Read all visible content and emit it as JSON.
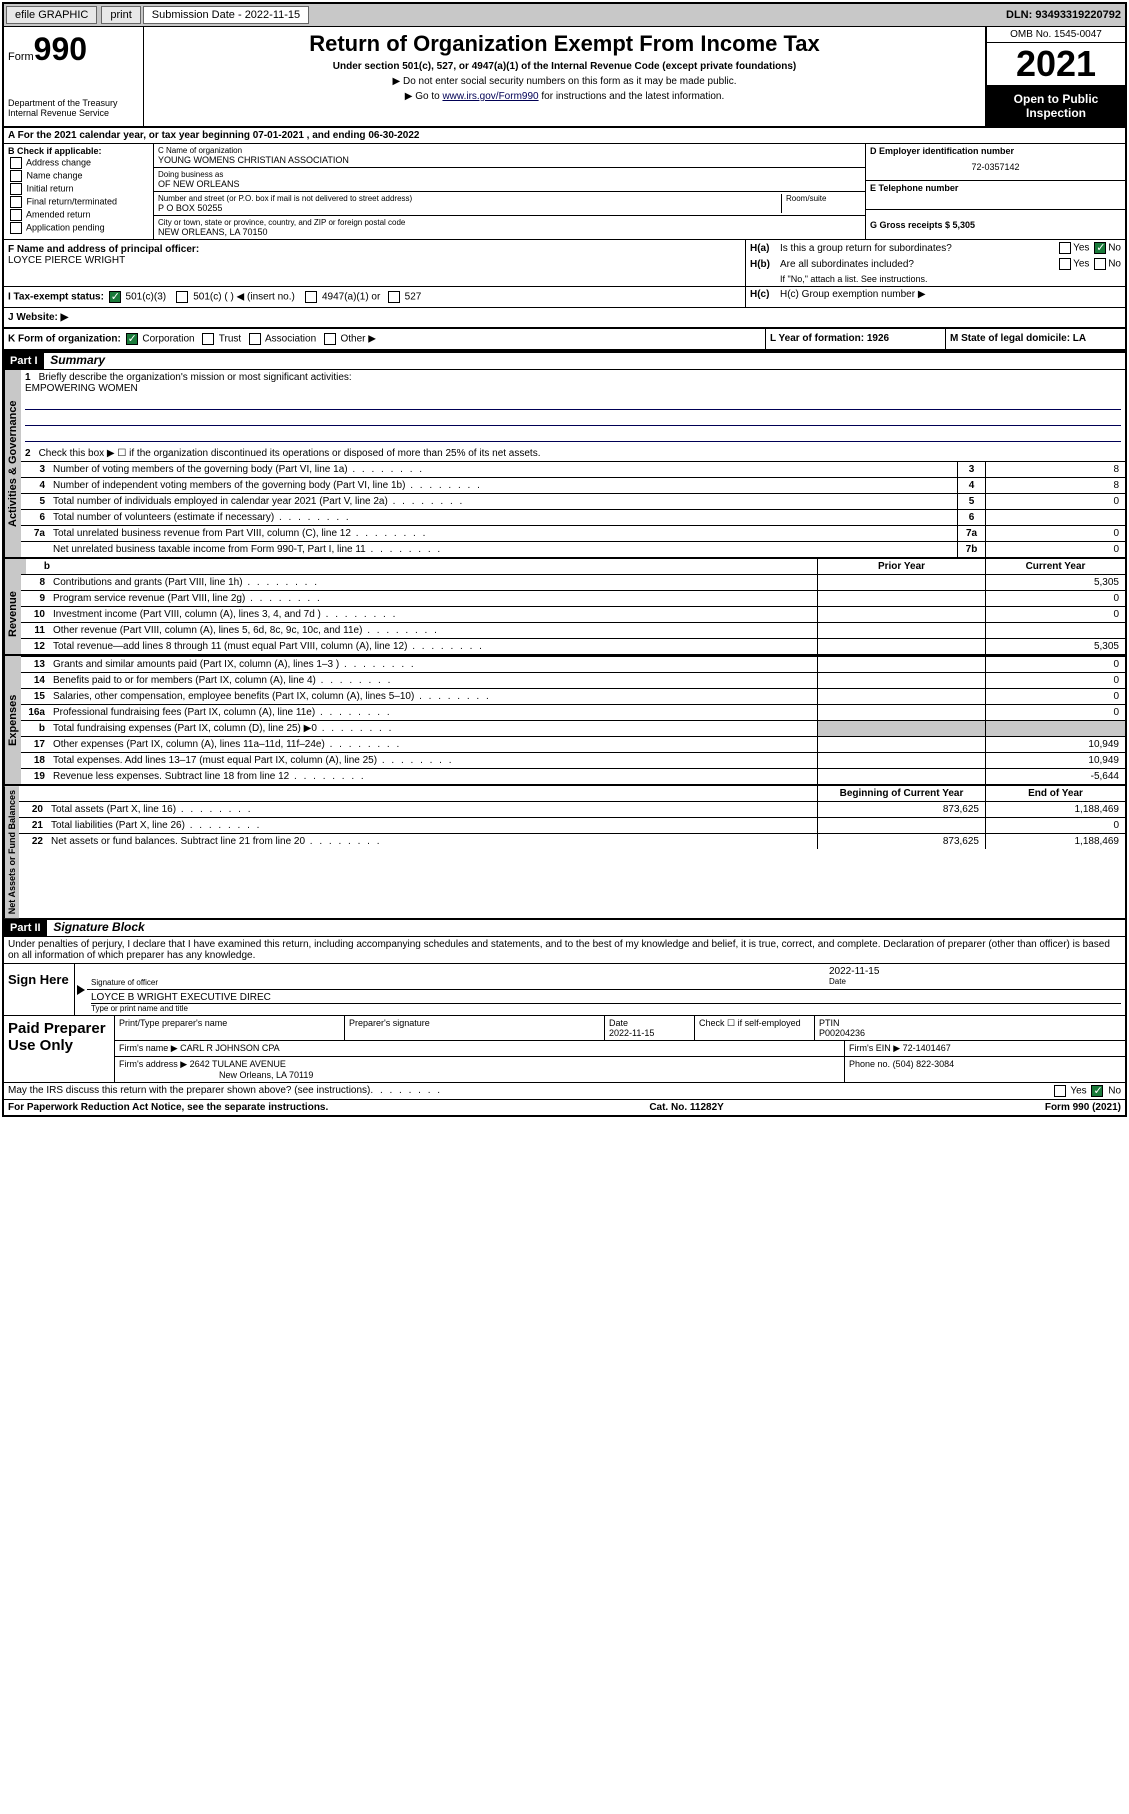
{
  "topbar": {
    "efile": "efile GRAPHIC",
    "print": "print",
    "subdate_label": "Submission Date - 2022-11-15",
    "dln": "DLN: 93493319220792"
  },
  "header": {
    "form_prefix": "Form",
    "form_num": "990",
    "dept": "Department of the Treasury",
    "irs": "Internal Revenue Service",
    "title": "Return of Organization Exempt From Income Tax",
    "subtitle": "Under section 501(c), 527, or 4947(a)(1) of the Internal Revenue Code (except private foundations)",
    "note1": "▶ Do not enter social security numbers on this form as it may be made public.",
    "note2_pre": "▶ Go to ",
    "note2_link": "www.irs.gov/Form990",
    "note2_post": " for instructions and the latest information.",
    "omb": "OMB No. 1545-0047",
    "year": "2021",
    "open": "Open to Public Inspection"
  },
  "sectionA": {
    "text": "A For the 2021 calendar year, or tax year beginning 07-01-2021    , and ending 06-30-2022"
  },
  "boxB": {
    "label": "B Check if applicable:",
    "items": [
      "Address change",
      "Name change",
      "Initial return",
      "Final return/terminated",
      "Amended return",
      "Application pending"
    ]
  },
  "boxC": {
    "name_label": "C Name of organization",
    "name": "YOUNG WOMENS CHRISTIAN ASSOCIATION",
    "dba_label": "Doing business as",
    "dba": "OF NEW ORLEANS",
    "addr_label": "Number and street (or P.O. box if mail is not delivered to street address)",
    "room_label": "Room/suite",
    "addr": "P O BOX 50255",
    "city_label": "City or town, state or province, country, and ZIP or foreign postal code",
    "city": "NEW ORLEANS, LA   70150"
  },
  "boxD": {
    "label": "D Employer identification number",
    "ein": "72-0357142",
    "e_label": "E Telephone number",
    "g_label": "G Gross receipts $ 5,305"
  },
  "boxF": {
    "label": "F  Name and address of principal officer:",
    "name": "LOYCE PIERCE WRIGHT"
  },
  "boxH": {
    "ha": "H(a)  Is this a group return for subordinates?",
    "hb": "H(b)  Are all subordinates included?",
    "hb_note": "If \"No,\" attach a list. See instructions.",
    "hc": "H(c)  Group exemption number ▶",
    "yes": "Yes",
    "no": "No"
  },
  "boxI": {
    "label": "I     Tax-exempt status:",
    "opt1": "501(c)(3)",
    "opt2": "501(c) (   ) ◀ (insert no.)",
    "opt3": "4947(a)(1) or",
    "opt4": "527"
  },
  "boxJ": {
    "label": "J     Website: ▶"
  },
  "boxK": {
    "label": "K Form of organization:",
    "opts": [
      "Corporation",
      "Trust",
      "Association",
      "Other ▶"
    ]
  },
  "boxL": {
    "label": "L Year of formation: 1926"
  },
  "boxM": {
    "label": "M State of legal domicile: LA"
  },
  "part1": {
    "header": "Part I",
    "title": "Summary",
    "vert1": "Activities & Governance",
    "vert2": "Revenue",
    "vert3": "Expenses",
    "vert4": "Net Assets or Fund Balances",
    "line1": "Briefly describe the organization's mission or most significant activities:",
    "mission": "EMPOWERING WOMEN",
    "line2": "Check this box ▶ ☐  if the organization discontinued its operations or disposed of more than 25% of its net assets.",
    "lines": [
      {
        "n": "3",
        "t": "Number of voting members of the governing body (Part VI, line 1a)",
        "b": "3",
        "v": "8"
      },
      {
        "n": "4",
        "t": "Number of independent voting members of the governing body (Part VI, line 1b)",
        "b": "4",
        "v": "8"
      },
      {
        "n": "5",
        "t": "Total number of individuals employed in calendar year 2021 (Part V, line 2a)",
        "b": "5",
        "v": "0"
      },
      {
        "n": "6",
        "t": "Total number of volunteers (estimate if necessary)",
        "b": "6",
        "v": ""
      },
      {
        "n": "7a",
        "t": "Total unrelated business revenue from Part VIII, column (C), line 12",
        "b": "7a",
        "v": "0"
      },
      {
        "n": "",
        "t": "Net unrelated business taxable income from Form 990-T, Part I, line 11",
        "b": "7b",
        "v": "0"
      }
    ],
    "col_prior": "Prior Year",
    "col_current": "Current Year",
    "rev_lines": [
      {
        "n": "8",
        "t": "Contributions and grants (Part VIII, line 1h)",
        "p": "",
        "c": "5,305"
      },
      {
        "n": "9",
        "t": "Program service revenue (Part VIII, line 2g)",
        "p": "",
        "c": "0"
      },
      {
        "n": "10",
        "t": "Investment income (Part VIII, column (A), lines 3, 4, and 7d )",
        "p": "",
        "c": "0"
      },
      {
        "n": "11",
        "t": "Other revenue (Part VIII, column (A), lines 5, 6d, 8c, 9c, 10c, and 11e)",
        "p": "",
        "c": ""
      },
      {
        "n": "12",
        "t": "Total revenue—add lines 8 through 11 (must equal Part VIII, column (A), line 12)",
        "p": "",
        "c": "5,305"
      }
    ],
    "exp_lines": [
      {
        "n": "13",
        "t": "Grants and similar amounts paid (Part IX, column (A), lines 1–3 )",
        "p": "",
        "c": "0"
      },
      {
        "n": "14",
        "t": "Benefits paid to or for members (Part IX, column (A), line 4)",
        "p": "",
        "c": "0"
      },
      {
        "n": "15",
        "t": "Salaries, other compensation, employee benefits (Part IX, column (A), lines 5–10)",
        "p": "",
        "c": "0"
      },
      {
        "n": "16a",
        "t": "Professional fundraising fees (Part IX, column (A), line 11e)",
        "p": "",
        "c": "0"
      },
      {
        "n": "b",
        "t": "Total fundraising expenses (Part IX, column (D), line 25) ▶0",
        "p": "shaded",
        "c": "shaded"
      },
      {
        "n": "17",
        "t": "Other expenses (Part IX, column (A), lines 11a–11d, 11f–24e)",
        "p": "",
        "c": "10,949"
      },
      {
        "n": "18",
        "t": "Total expenses. Add lines 13–17 (must equal Part IX, column (A), line 25)",
        "p": "",
        "c": "10,949"
      },
      {
        "n": "19",
        "t": "Revenue less expenses. Subtract line 18 from line 12",
        "p": "",
        "c": "-5,644"
      }
    ],
    "col_begin": "Beginning of Current Year",
    "col_end": "End of Year",
    "net_lines": [
      {
        "n": "20",
        "t": "Total assets (Part X, line 16)",
        "p": "873,625",
        "c": "1,188,469"
      },
      {
        "n": "21",
        "t": "Total liabilities (Part X, line 26)",
        "p": "",
        "c": "0"
      },
      {
        "n": "22",
        "t": "Net assets or fund balances. Subtract line 21 from line 20",
        "p": "873,625",
        "c": "1,188,469"
      }
    ]
  },
  "part2": {
    "header": "Part II",
    "title": "Signature Block",
    "declaration": "Under penalties of perjury, I declare that I have examined this return, including accompanying schedules and statements, and to the best of my knowledge and belief, it is true, correct, and complete. Declaration of preparer (other than officer) is based on all information of which preparer has any knowledge."
  },
  "sign": {
    "label": "Sign Here",
    "sig_label": "Signature of officer",
    "date_label": "Date",
    "date": "2022-11-15",
    "name": "LOYCE B WRIGHT  EXECUTIVE DIREC",
    "name_label": "Type or print name and title"
  },
  "paid": {
    "label": "Paid Preparer Use Only",
    "col1": "Print/Type preparer's name",
    "col2": "Preparer's signature",
    "col3": "Date",
    "date": "2022-11-15",
    "col4": "Check ☐ if self-employed",
    "col5": "PTIN",
    "ptin": "P00204236",
    "firm_label": "Firm's name    ▶",
    "firm": "CARL R JOHNSON CPA",
    "ein_label": "Firm's EIN ▶",
    "ein": "72-1401467",
    "addr_label": "Firm's address ▶",
    "addr1": "2642 TULANE AVENUE",
    "addr2": "New Orleans, LA  70119",
    "phone_label": "Phone no.",
    "phone": "(504) 822-3084"
  },
  "bottom": {
    "discuss": "May the IRS discuss this return with the preparer shown above? (see instructions)",
    "paperwork": "For Paperwork Reduction Act Notice, see the separate instructions.",
    "cat": "Cat. No. 11282Y",
    "form": "Form 990 (2021)"
  }
}
